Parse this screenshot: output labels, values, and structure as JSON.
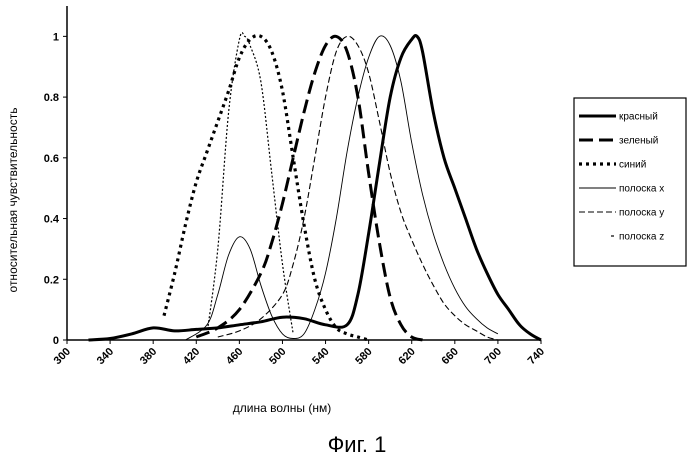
{
  "chart_data": {
    "type": "line",
    "xlabel": "длина волны (нм)",
    "ylabel": "относительная чувствительность",
    "xlim": [
      300,
      740
    ],
    "ylim": [
      0,
      1.1
    ],
    "x_ticks": [
      300,
      340,
      380,
      420,
      460,
      500,
      540,
      580,
      620,
      660,
      700,
      740
    ],
    "x_tick_labels": [
      "300",
      "340",
      "380",
      "420",
      "460",
      "500",
      "540",
      "580",
      "620",
      "660",
      "700",
      "740"
    ],
    "y_ticks": [
      0,
      0.2,
      0.4,
      0.6,
      0.8,
      1
    ],
    "y_tick_labels": [
      "0",
      "0.2",
      "0.4",
      "0.6",
      "0.8",
      "1"
    ],
    "grid": false,
    "legend_position": "right",
    "series": [
      {
        "name": "красный",
        "style": "thick-solid",
        "x": [
          320,
          340,
          360,
          380,
          400,
          420,
          440,
          460,
          480,
          500,
          520,
          540,
          560,
          570,
          580,
          590,
          600,
          610,
          620,
          625,
          630,
          640,
          650,
          660,
          670,
          680,
          690,
          700,
          710,
          720,
          730,
          740
        ],
        "y": [
          0,
          0.005,
          0.02,
          0.04,
          0.03,
          0.035,
          0.04,
          0.05,
          0.06,
          0.075,
          0.07,
          0.05,
          0.05,
          0.15,
          0.35,
          0.58,
          0.8,
          0.93,
          0.99,
          1.0,
          0.95,
          0.75,
          0.6,
          0.5,
          0.4,
          0.3,
          0.22,
          0.15,
          0.1,
          0.05,
          0.02,
          0
        ]
      },
      {
        "name": "зеленый",
        "style": "thick-dashed",
        "x": [
          420,
          440,
          460,
          480,
          490,
          500,
          510,
          520,
          530,
          540,
          550,
          560,
          570,
          580,
          590,
          600,
          610,
          620,
          630
        ],
        "y": [
          0.01,
          0.04,
          0.1,
          0.22,
          0.32,
          0.45,
          0.6,
          0.75,
          0.88,
          0.97,
          1.0,
          0.95,
          0.8,
          0.55,
          0.32,
          0.14,
          0.05,
          0.01,
          0
        ]
      },
      {
        "name": "синий",
        "style": "dotted",
        "x": [
          390,
          400,
          410,
          420,
          430,
          440,
          450,
          460,
          470,
          480,
          490,
          500,
          510,
          520,
          530,
          540,
          550,
          560,
          570,
          580
        ],
        "y": [
          0.08,
          0.22,
          0.38,
          0.52,
          0.62,
          0.72,
          0.82,
          0.93,
          0.99,
          1.0,
          0.95,
          0.82,
          0.6,
          0.38,
          0.2,
          0.1,
          0.04,
          0.02,
          0.01,
          0
        ]
      },
      {
        "name": "полоска x",
        "style": "thin-solid",
        "x": [
          410,
          430,
          440,
          450,
          460,
          470,
          480,
          490,
          500,
          510,
          520,
          530,
          540,
          550,
          560,
          570,
          580,
          590,
          600,
          610,
          620,
          630,
          640,
          650,
          660,
          670,
          680,
          690,
          700
        ],
        "y": [
          0,
          0.05,
          0.15,
          0.28,
          0.34,
          0.3,
          0.18,
          0.08,
          0.02,
          0.005,
          0.02,
          0.1,
          0.22,
          0.4,
          0.62,
          0.8,
          0.93,
          1.0,
          0.97,
          0.85,
          0.65,
          0.48,
          0.35,
          0.25,
          0.17,
          0.11,
          0.07,
          0.04,
          0.02
        ]
      },
      {
        "name": "полоска y",
        "style": "thin-dashed",
        "x": [
          440,
          460,
          480,
          500,
          510,
          520,
          530,
          540,
          550,
          560,
          570,
          580,
          590,
          600,
          610,
          620,
          630,
          640,
          650,
          660,
          670,
          680,
          690,
          700
        ],
        "y": [
          0.01,
          0.03,
          0.07,
          0.15,
          0.25,
          0.4,
          0.6,
          0.8,
          0.95,
          1.0,
          0.97,
          0.88,
          0.72,
          0.55,
          0.42,
          0.33,
          0.25,
          0.18,
          0.12,
          0.08,
          0.05,
          0.03,
          0.01,
          0
        ]
      },
      {
        "name": "полоска z",
        "style": "dash-dot",
        "x": [
          430,
          440,
          450,
          460,
          465,
          470,
          480,
          490,
          500,
          510
        ],
        "y": [
          0.02,
          0.3,
          0.75,
          0.99,
          1.0,
          0.97,
          0.85,
          0.55,
          0.25,
          0.02
        ]
      }
    ]
  },
  "caption": "Фиг. 1"
}
